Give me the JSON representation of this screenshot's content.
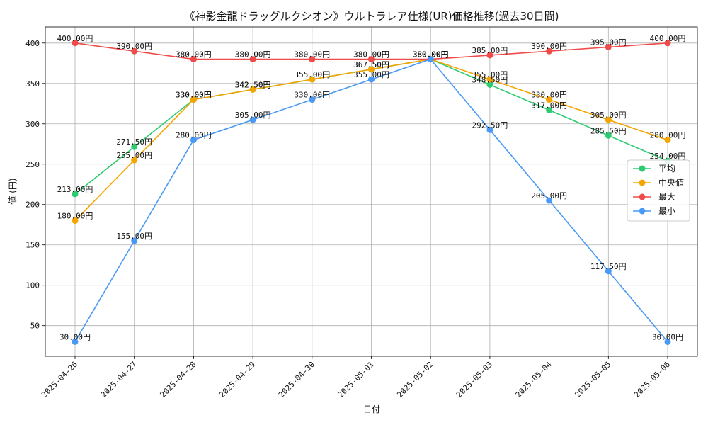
{
  "chart_data": {
    "type": "line",
    "title": "《神影金龍ドラッグルクシオン》ウルトラレア仕様(UR)価格推移(過去30日間)",
    "xlabel": "日付",
    "ylabel": "値 (円)",
    "ylim": [
      12,
      420
    ],
    "yticks": [
      50,
      100,
      150,
      200,
      250,
      300,
      350,
      400
    ],
    "grid": true,
    "legend_position": "center-right",
    "value_suffix": "円",
    "categories": [
      "2025-04-26",
      "2025-04-27",
      "2025-04-28",
      "2025-04-29",
      "2025-04-30",
      "2025-05-01",
      "2025-05-02",
      "2025-05-03",
      "2025-05-04",
      "2025-05-05",
      "2025-05-06"
    ],
    "series": [
      {
        "name": "平均",
        "color": "#2ecc71",
        "values": [
          213.0,
          271.5,
          330.0,
          342.5,
          355.0,
          367.5,
          380.0,
          348.5,
          317.0,
          285.5,
          254.0
        ]
      },
      {
        "name": "中央値",
        "color": "#f5a500",
        "values": [
          180.0,
          255.0,
          330.0,
          342.5,
          355.0,
          367.5,
          380.0,
          355.0,
          330.0,
          305.0,
          280.0
        ]
      },
      {
        "name": "最大",
        "color": "#ef4b4b",
        "values": [
          400.0,
          390.0,
          380.0,
          380.0,
          380.0,
          380.0,
          380.0,
          385.0,
          390.0,
          395.0,
          400.0
        ]
      },
      {
        "name": "最小",
        "color": "#4a9af5",
        "values": [
          30.0,
          155.0,
          280.0,
          305.0,
          330.0,
          355.0,
          380.0,
          292.5,
          205.0,
          117.5,
          30.0
        ]
      }
    ]
  }
}
